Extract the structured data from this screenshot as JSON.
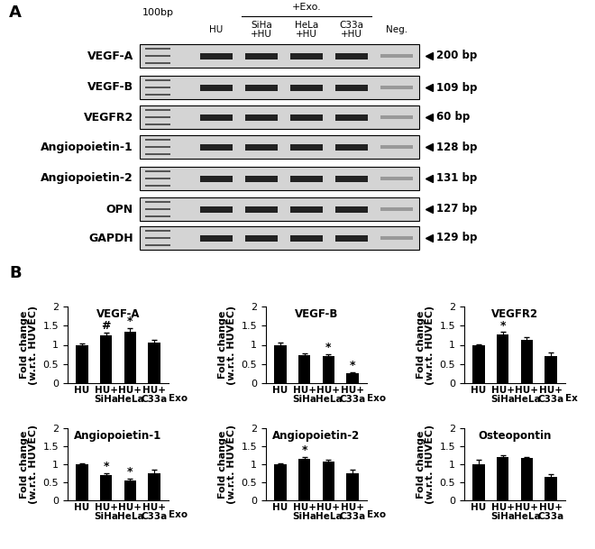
{
  "panel_a": {
    "label": "A",
    "ladder": "100bp",
    "group_label": "+Exo.",
    "lanes": [
      "HU",
      "SiHa\n+HU",
      "HeLa\n+HU",
      "C33a\n+HU",
      "Neg."
    ],
    "genes": [
      {
        "name": "VEGF-A",
        "size": "200 bp"
      },
      {
        "name": "VEGF-B",
        "size": "109 bp"
      },
      {
        "name": "VEGFR2",
        "size": "60 bp"
      },
      {
        "name": "Angiopoietin-1",
        "size": "128 bp"
      },
      {
        "name": "Angiopoietin-2",
        "size": "131 bp"
      },
      {
        "name": "OPN",
        "size": "127 bp"
      },
      {
        "name": "GAPDH",
        "size": "129 bp"
      }
    ]
  },
  "panel_b": {
    "label": "B"
  },
  "chart_data": [
    {
      "type": "bar",
      "title": "VEGF-A",
      "y_label": "Fold change\n(w.r.t. HUVEC)",
      "categories": [
        "HU",
        "HU+\nSiHa",
        "HU+\nHeLa",
        "HU+\nC33a"
      ],
      "values": [
        1.0,
        1.25,
        1.35,
        1.06
      ],
      "errors": [
        0.03,
        0.07,
        0.08,
        0.08
      ],
      "significance": [
        null,
        "#",
        "*",
        null
      ],
      "annotations": [
        "Exo"
      ],
      "color": "#000000",
      "ylim": [
        0,
        2
      ],
      "yticks": [
        0,
        0.5,
        1,
        1.5,
        2
      ]
    },
    {
      "type": "bar",
      "title": "VEGF-B",
      "y_label": "Fold change\n(w.r.t. HUVEC)",
      "categories": [
        "HU",
        "HU+\nSiHa",
        "HU+\nHeLa",
        "HU+\nC33a"
      ],
      "values": [
        1.0,
        0.72,
        0.7,
        0.26
      ],
      "errors": [
        0.05,
        0.06,
        0.05,
        0.03
      ],
      "significance": [
        null,
        null,
        "*",
        "*"
      ],
      "annotations": [
        "Exo"
      ],
      "color": "#000000",
      "ylim": [
        0,
        2
      ],
      "yticks": [
        0,
        0.5,
        1,
        1.5,
        2
      ]
    },
    {
      "type": "bar",
      "title": "VEGFR2",
      "y_label": "Fold change\n(w.r.t. HUVEC)",
      "categories": [
        "HU",
        "HU+\nSiHa",
        "HU+\nHeLa",
        "HU+\nC33a"
      ],
      "values": [
        1.0,
        1.27,
        1.13,
        0.7
      ],
      "errors": [
        0.02,
        0.06,
        0.06,
        0.1
      ],
      "significance": [
        null,
        "*",
        null,
        null
      ],
      "annotations": [
        "Ex"
      ],
      "color": "#000000",
      "ylim": [
        0,
        2
      ],
      "yticks": [
        0,
        0.5,
        1,
        1.5,
        2
      ]
    },
    {
      "type": "bar",
      "title": "Angiopoietin-1",
      "y_label": "Fold change\n(w.r.t. HUVEC)",
      "categories": [
        "HU",
        "HU+\nSiHa",
        "HU+\nHeLa",
        "HU+\nC33a"
      ],
      "values": [
        1.0,
        0.71,
        0.56,
        0.76
      ],
      "errors": [
        0.02,
        0.04,
        0.05,
        0.1
      ],
      "significance": [
        null,
        "*",
        "*",
        null
      ],
      "annotations": [
        "Exo"
      ],
      "color": "#000000",
      "ylim": [
        0,
        2
      ],
      "yticks": [
        0,
        0.5,
        1,
        1.5,
        2
      ]
    },
    {
      "type": "bar",
      "title": "Angiopoietin-2",
      "y_label": "Fold change\n(w.r.t. HUVEC)",
      "categories": [
        "HU",
        "HU+\nSiHa",
        "HU+\nHeLa",
        "HU+\nC33a"
      ],
      "values": [
        1.0,
        1.15,
        1.08,
        0.76
      ],
      "errors": [
        0.02,
        0.05,
        0.05,
        0.1
      ],
      "significance": [
        null,
        "*",
        null,
        null
      ],
      "annotations": [
        "Exo"
      ],
      "color": "#000000",
      "ylim": [
        0,
        2
      ],
      "yticks": [
        0,
        0.5,
        1,
        1.5,
        2
      ]
    },
    {
      "type": "bar",
      "title": "Osteopontin",
      "y_label": "Fold change\n(w.r.t. HUVEC)",
      "categories": [
        "HU",
        "HU+\nSiHa",
        "HU+\nHeLa",
        "HU+\nC33a"
      ],
      "values": [
        1.0,
        1.2,
        1.18,
        0.65
      ],
      "errors": [
        0.12,
        0.05,
        0.03,
        0.08
      ],
      "significance": [
        null,
        null,
        null,
        null
      ],
      "color": "#000000",
      "ylim": [
        0,
        2
      ],
      "yticks": [
        0,
        0.5,
        1,
        1.5,
        2
      ]
    }
  ]
}
